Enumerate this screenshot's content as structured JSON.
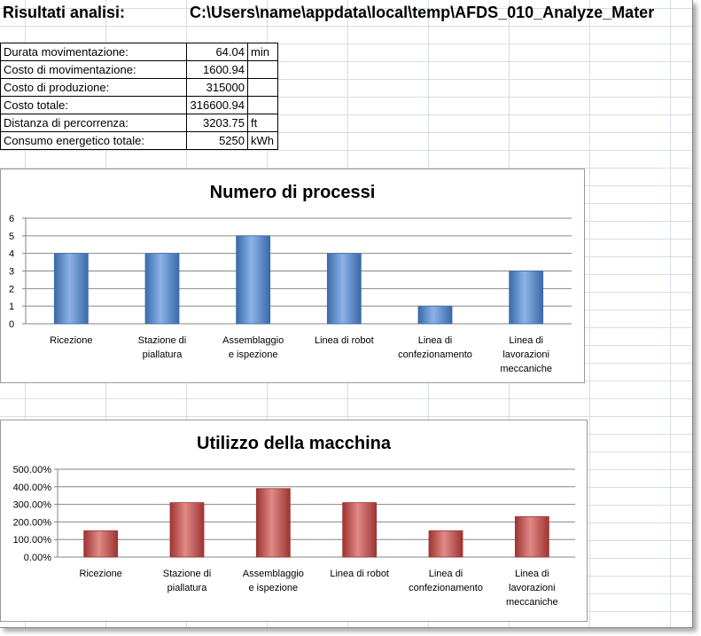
{
  "header": {
    "label": "Risultati analisi:",
    "path": "C:\\Users\\name\\appdata\\local\\temp\\AFDS_010_Analyze_Mater"
  },
  "summary": [
    {
      "label": "Durata movimentazione:",
      "value": "64.04",
      "unit": "min"
    },
    {
      "label": "Costo di movimentazione:",
      "value": "1600.94",
      "unit": ""
    },
    {
      "label": "Costo di produzione:",
      "value": "315000",
      "unit": ""
    },
    {
      "label": "Costo totale:",
      "value": "316600.94",
      "unit": ""
    },
    {
      "label": "Distanza di percorrenza:",
      "value": "3203.75",
      "unit": "ft"
    },
    {
      "label": "Consumo energetico totale:",
      "value": "5250",
      "unit": "kWh"
    }
  ],
  "colors": {
    "blue_bar": "#4f81bd",
    "red_bar": "#c0504d"
  },
  "chart_data": [
    {
      "type": "bar",
      "title": "Numero di processi",
      "categories": [
        [
          "Ricezione"
        ],
        [
          "Stazione di",
          "piallatura"
        ],
        [
          "Assemblaggio",
          "e ispezione"
        ],
        [
          "Linea di robot"
        ],
        [
          "Linea di",
          "confezionamento"
        ],
        [
          "Linea di",
          "lavorazioni",
          "meccaniche"
        ]
      ],
      "values": [
        4,
        4,
        5,
        4,
        1,
        3
      ],
      "ylim": [
        0,
        6
      ],
      "yticks": [
        "0",
        "1",
        "2",
        "3",
        "4",
        "5",
        "6"
      ],
      "grid": true,
      "legend": "none"
    },
    {
      "type": "bar",
      "title": "Utilizzo della macchina",
      "categories": [
        [
          "Ricezione"
        ],
        [
          "Stazione di",
          "piallatura"
        ],
        [
          "Assemblaggio",
          "e ispezione"
        ],
        [
          "Linea di robot"
        ],
        [
          "Linea di",
          "confezionamento"
        ],
        [
          "Linea di",
          "lavorazioni",
          "meccaniche"
        ]
      ],
      "values": [
        150,
        310,
        390,
        310,
        150,
        230
      ],
      "ylim": [
        0,
        500
      ],
      "yticks": [
        "0.00%",
        "100.00%",
        "200.00%",
        "300.00%",
        "400.00%",
        "500.00%"
      ],
      "grid": true,
      "legend": "none"
    }
  ]
}
